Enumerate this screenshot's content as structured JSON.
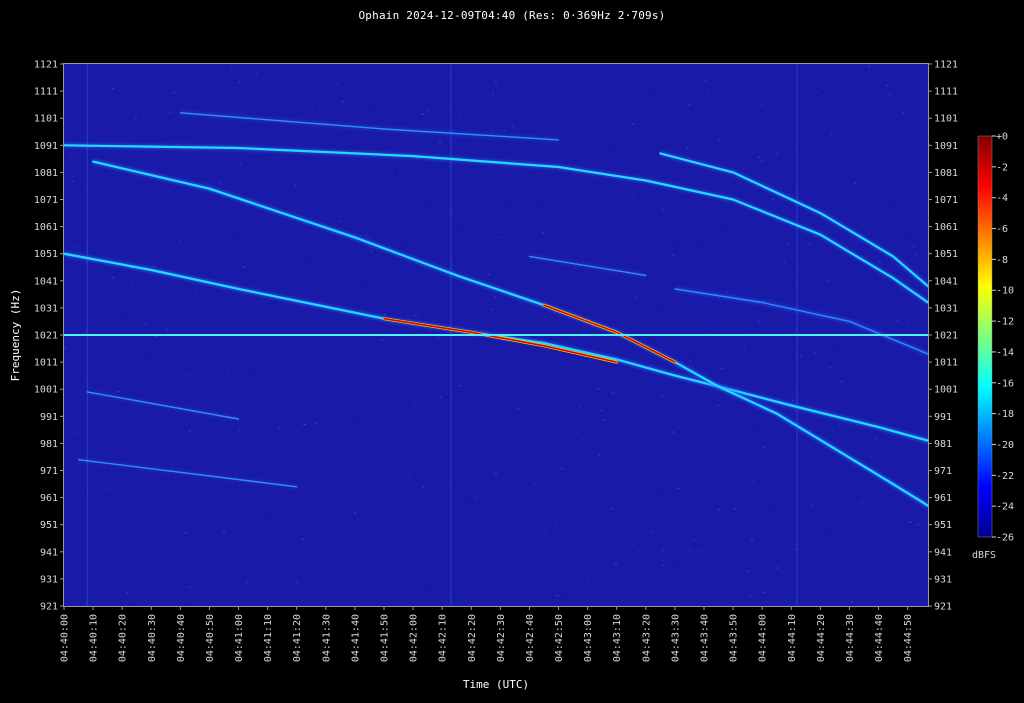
{
  "chart_data": {
    "type": "heatmap",
    "title": "Ophain 2024-12-09T04:40 (Res: 0·369Hz 2·709s)",
    "xlabel": "Time (UTC)",
    "ylabel": "Frequency (Hz)",
    "x_ticks": [
      "04:40:00",
      "04:40:10",
      "04:40:20",
      "04:40:30",
      "04:40:40",
      "04:40:50",
      "04:41:00",
      "04:41:10",
      "04:41:20",
      "04:41:30",
      "04:41:40",
      "04:41:50",
      "04:42:00",
      "04:42:10",
      "04:42:20",
      "04:42:30",
      "04:42:40",
      "04:42:50",
      "04:43:00",
      "04:43:10",
      "04:43:20",
      "04:43:30",
      "04:43:40",
      "04:43:50",
      "04:44:00",
      "04:44:10",
      "04:44:20",
      "04:44:30",
      "04:44:40",
      "04:44:50"
    ],
    "x_range_seconds": [
      0,
      297
    ],
    "y_ticks": [
      1121,
      1111,
      1101,
      1091,
      1081,
      1071,
      1061,
      1051,
      1041,
      1031,
      1021,
      1011,
      1001,
      991,
      981,
      971,
      961,
      951,
      941,
      931,
      921
    ],
    "ylim": [
      921,
      1121
    ],
    "colorbar": {
      "label": "dBFS",
      "ticks": [
        "+0",
        "-2",
        "-4",
        "-6",
        "-8",
        "-10",
        "-12",
        "-14",
        "-16",
        "-18",
        "-20",
        "-22",
        "-24",
        "-26"
      ],
      "range": [
        -26,
        0
      ]
    },
    "series": [
      {
        "points": [
          [
            0,
            1051
          ],
          [
            30,
            1045
          ],
          [
            60,
            1038
          ],
          [
            110,
            1027
          ],
          [
            140,
            1022
          ],
          [
            165,
            1018
          ],
          [
            190,
            1012
          ],
          [
            210,
            1006
          ],
          [
            225,
            1002
          ],
          [
            250,
            995
          ],
          [
            280,
            987
          ],
          [
            297,
            982
          ]
        ]
      },
      {
        "points": [
          [
            10,
            1085
          ],
          [
            50,
            1075
          ],
          [
            100,
            1057
          ],
          [
            135,
            1043
          ],
          [
            165,
            1032
          ],
          [
            190,
            1022
          ],
          [
            210,
            1011
          ],
          [
            225,
            1002
          ],
          [
            245,
            992
          ],
          [
            265,
            979
          ],
          [
            285,
            966
          ],
          [
            297,
            958
          ]
        ]
      },
      {
        "points": [
          [
            0,
            1091
          ],
          [
            60,
            1090
          ],
          [
            120,
            1087
          ],
          [
            170,
            1083
          ],
          [
            200,
            1078
          ],
          [
            230,
            1071
          ],
          [
            260,
            1058
          ],
          [
            285,
            1042
          ],
          [
            297,
            1033
          ]
        ]
      },
      {
        "points": [
          [
            205,
            1088
          ],
          [
            230,
            1081
          ],
          [
            260,
            1066
          ],
          [
            285,
            1050
          ],
          [
            297,
            1039
          ]
        ]
      },
      {
        "points": [
          [
            210,
            1038
          ],
          [
            240,
            1033
          ],
          [
            270,
            1026
          ],
          [
            297,
            1014
          ]
        ]
      },
      {
        "points": [
          [
            40,
            1103
          ],
          [
            110,
            1097
          ],
          [
            170,
            1093
          ]
        ]
      },
      {
        "points": [
          [
            8,
            1000
          ],
          [
            60,
            990
          ]
        ]
      },
      {
        "points": [
          [
            5,
            975
          ],
          [
            80,
            965
          ]
        ]
      },
      {
        "points": [
          [
            160,
            1050
          ],
          [
            200,
            1043
          ]
        ]
      }
    ],
    "carrier_frequency": 1021
  }
}
